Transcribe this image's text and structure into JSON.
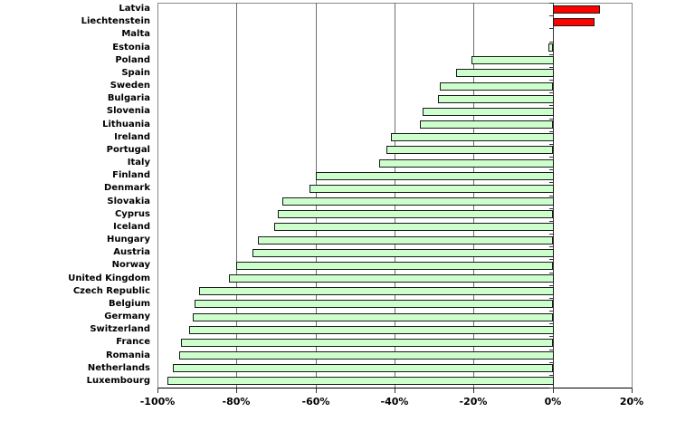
{
  "chart_data": {
    "type": "bar",
    "orientation": "horizontal",
    "title": "",
    "xlabel": "",
    "ylabel": "",
    "categories": [
      "Latvia",
      "Liechtenstein",
      "Malta",
      "Estonia",
      "Poland",
      "Spain",
      "Sweden",
      "Bulgaria",
      "Slovenia",
      "Lithuania",
      "Ireland",
      "Portugal",
      "Italy",
      "Finland",
      "Denmark",
      "Slovakia",
      "Cyprus",
      "Iceland",
      "Hungary",
      "Austria",
      "Norway",
      "United Kingdom",
      "Czech Republic",
      "Belgium",
      "Germany",
      "Switzerland",
      "France",
      "Romania",
      "Netherlands",
      "Luxembourg"
    ],
    "values": [
      12,
      10.5,
      0,
      -1,
      -20.5,
      -24.5,
      -28.5,
      -29,
      -33,
      -33.5,
      -41,
      -42,
      -44,
      -60,
      -61.5,
      -68.5,
      -69.5,
      -70.5,
      -74.5,
      -76,
      -80,
      -82,
      -89.5,
      -90.5,
      -91,
      -92,
      -94,
      -94.5,
      -96,
      -97.5
    ],
    "value_unit": "%",
    "xlim": [
      -100,
      20
    ],
    "x_tick_values": [
      -100,
      -80,
      -60,
      -40,
      -20,
      0,
      20
    ],
    "x_tick_labels": [
      "-100%",
      "-80%",
      "-60%",
      "-40%",
      "-20%",
      "0%",
      "20%"
    ],
    "grid": "vertical gridlines every 20%, category axis drawn at 0",
    "legend": "none",
    "colors": {
      "negative_bar_fill": "#CCFFCC",
      "positive_bar_fill": "#FF0000",
      "bar_border": "#1a1a1a",
      "gridline": "#6e6e6e",
      "plot_border": "#888888",
      "axis_line": "#333333",
      "text": "#000000",
      "background": "#FFFFFF"
    }
  }
}
